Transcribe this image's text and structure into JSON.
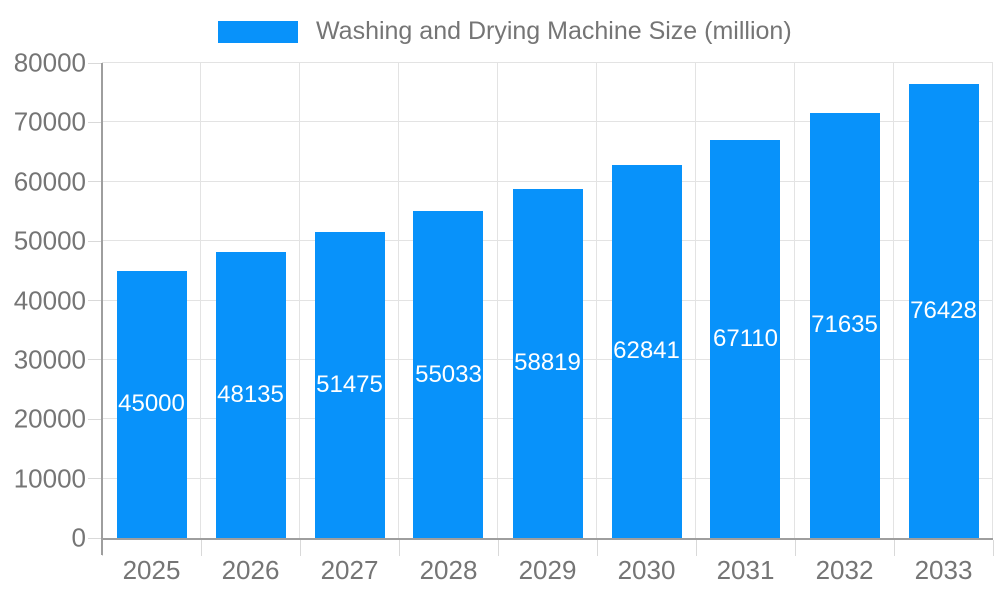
{
  "legend": {
    "label": "Washing and Drying Machine Size (million)"
  },
  "colors": {
    "bar": "#0892fa",
    "axis_line": "#9e9e9e",
    "grid_line": "#e3e3e3",
    "tick": "#d9d9d9",
    "axis_label": "#757575",
    "bar_label": "#ffffff",
    "background": "#ffffff"
  },
  "chart_data": {
    "type": "bar",
    "title": "Washing and Drying Machine Size (million)",
    "categories": [
      "2025",
      "2026",
      "2027",
      "2028",
      "2029",
      "2030",
      "2031",
      "2032",
      "2033"
    ],
    "series": [
      {
        "name": "Washing and Drying Machine Size (million)",
        "values": [
          45000,
          48135,
          51475,
          55033,
          58819,
          62841,
          67110,
          71635,
          76428
        ]
      }
    ],
    "xlabel": "",
    "ylabel": "",
    "ylim": [
      0,
      80000
    ],
    "ytick_step": 10000,
    "ytick_labels": [
      "0",
      "10000",
      "20000",
      "30000",
      "40000",
      "50000",
      "60000",
      "70000",
      "80000"
    ],
    "grid": true,
    "legend_position": "top",
    "value_labels": "inside-center"
  }
}
